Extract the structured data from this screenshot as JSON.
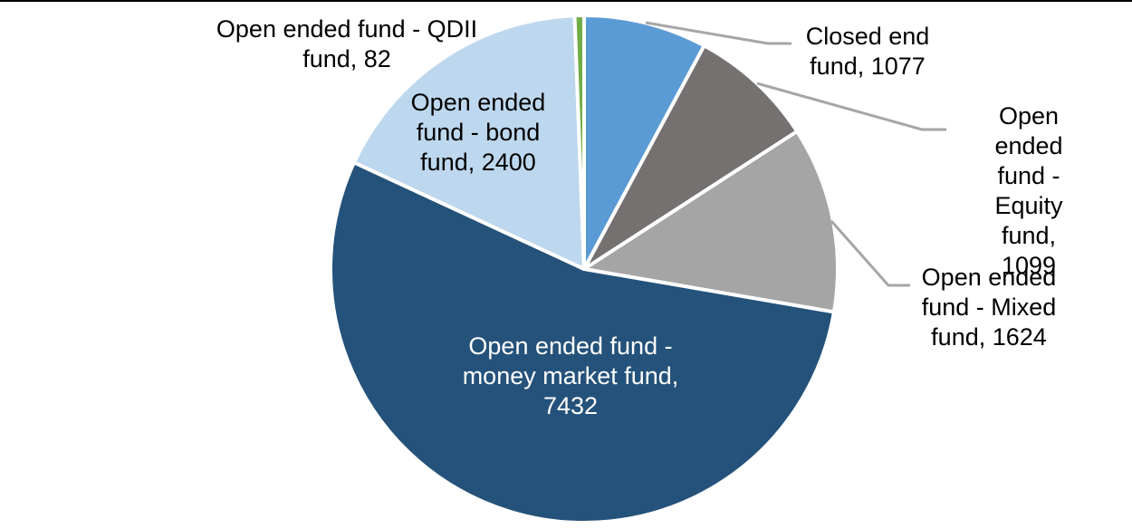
{
  "chart_data": {
    "type": "pie",
    "title": "",
    "legend": "none",
    "direction": "clockwise",
    "start_angle_deg": 0,
    "total": 13714,
    "slices": [
      {
        "name": "Closed end fund",
        "value": 1077,
        "color": "#5B9BD5",
        "data_label": "Closed end\nfund, 1077",
        "label_position": "outside",
        "label_color": "#000000",
        "leader_line": true
      },
      {
        "name": "Open ended fund - Equity fund",
        "value": 1099,
        "color": "#757171",
        "data_label": "Open ended\nfund - Equity\nfund, 1099",
        "label_position": "outside",
        "label_color": "#000000",
        "leader_line": true
      },
      {
        "name": "Open ended fund - Mixed fund",
        "value": 1624,
        "color": "#A5A5A5",
        "data_label": "Open ended\nfund - Mixed\nfund, 1624",
        "label_position": "outside",
        "label_color": "#000000",
        "leader_line": true
      },
      {
        "name": "Open ended fund - money market fund",
        "value": 7432,
        "color": "#24527A",
        "data_label": "Open ended fund -\nmoney market fund,\n7432",
        "label_position": "inside",
        "label_color": "#FFFFFF",
        "leader_line": false
      },
      {
        "name": "Open ended fund - bond fund",
        "value": 2400,
        "color": "#BDD7EE",
        "data_label": "Open ended\nfund - bond\nfund, 2400",
        "label_position": "inside",
        "label_color": "#000000",
        "leader_line": false
      },
      {
        "name": "Open ended fund - QDII fund",
        "value": 82,
        "color": "#70AD47",
        "data_label": "Open ended fund - QDII\nfund, 82",
        "label_position": "outside",
        "label_color": "#000000",
        "leader_line": false
      }
    ]
  },
  "colors": {
    "background": "#FFFFFF",
    "slice_border": "#FFFFFF",
    "leader_line": "#A6A6A6",
    "top_edge_line": "#000000"
  }
}
